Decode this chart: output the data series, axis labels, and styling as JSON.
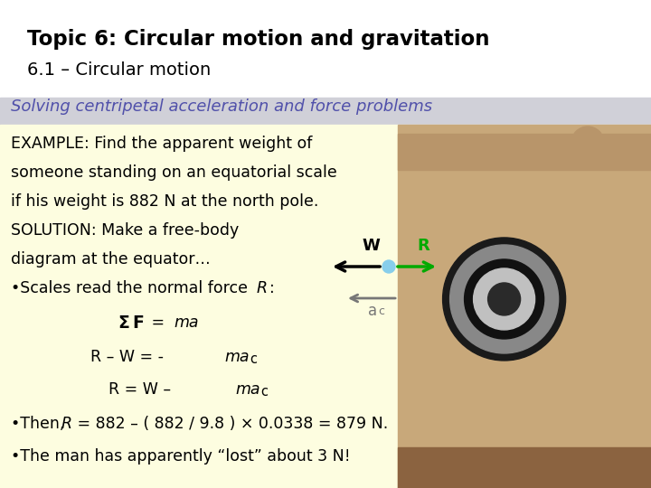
{
  "bg_color": "#ffffff",
  "title_line1": "Topic 6: Circular motion and gravitation",
  "title_line2": "6.1 – Circular motion",
  "subtitle": "Solving centripetal acceleration and force problems",
  "subtitle_color": "#5050aa",
  "subtitle_bg": "#d0d0d8",
  "content_bg": "#fdfde0",
  "title1_fontsize": 16.5,
  "title2_fontsize": 14,
  "subtitle_fontsize": 13,
  "body_fontsize": 12.5
}
